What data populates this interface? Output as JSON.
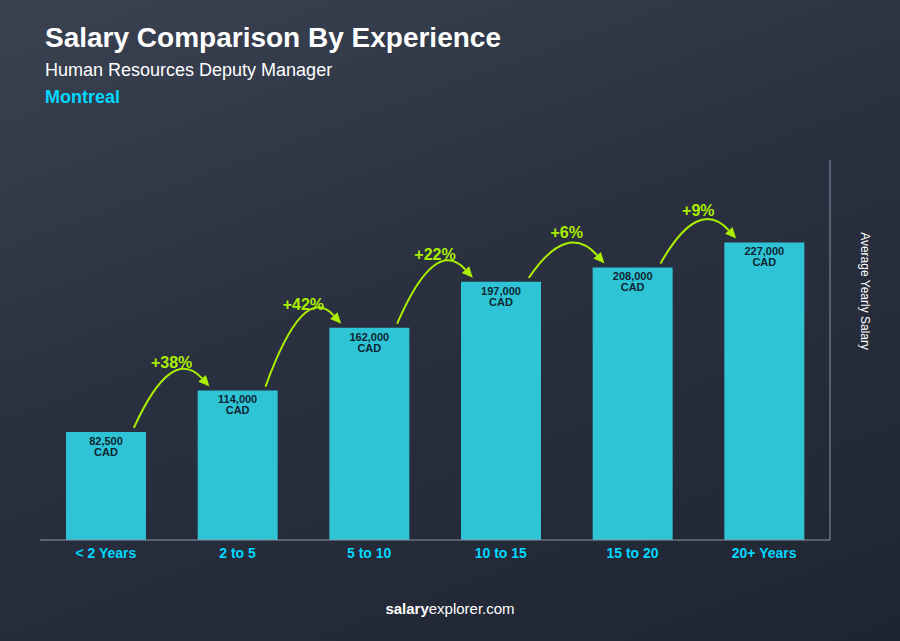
{
  "chart_data": {
    "type": "bar",
    "title": "Salary Comparison By Experience",
    "subtitle": [
      "Human Resources Deputy Manager",
      "Montreal"
    ],
    "categories": [
      "< 2 Years",
      "2 to 5",
      "5 to 10",
      "10 to 15",
      "15 to 20",
      "20+ Years"
    ],
    "values": [
      82500,
      114000,
      162000,
      197000,
      208000,
      227000
    ],
    "value_labels": [
      "82,500 CAD",
      "114,000 CAD",
      "162,000 CAD",
      "197,000 CAD",
      "208,000 CAD",
      "227,000 CAD"
    ],
    "data_labels": true,
    "color": "#2ec4d6",
    "ylim": [
      0,
      290000
    ],
    "ylabel": "Average Yearly Salary",
    "tick_labels": "x",
    "grid": false,
    "annotations": [
      "+38%",
      "+42%",
      "+22%",
      "+6%",
      "+9%"
    ],
    "footer": [
      "salary",
      "explorer.com"
    ]
  }
}
